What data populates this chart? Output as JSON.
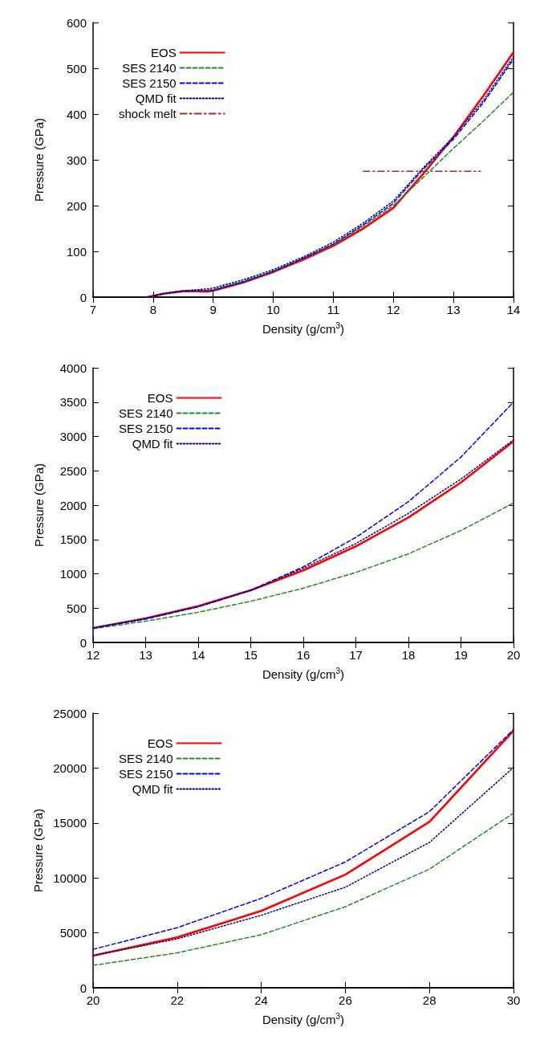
{
  "chart_data": [
    {
      "type": "line",
      "xlabel": "Density (g/cm$^{3}$)",
      "ylabel": "Pressure (GPa)",
      "xlim": [
        7,
        14
      ],
      "xticks": [
        7,
        8,
        9,
        10,
        11,
        12,
        13,
        14
      ],
      "ylim": [
        0,
        600
      ],
      "yticks": [
        0,
        100,
        200,
        300,
        400,
        500,
        600
      ],
      "grid": false,
      "legend": "top left",
      "marker": "none",
      "series": [
        {
          "name": "EOS",
          "color": "#ff0000",
          "line_style": "solid",
          "x": [
            7.9,
            8.2,
            8.5,
            8.7,
            8.9,
            9.0,
            9.5,
            10,
            10.5,
            11,
            11.5,
            12,
            12.5,
            13,
            13.5,
            14
          ],
          "values": [
            0,
            8,
            13,
            13,
            12,
            14,
            32,
            55,
            82,
            112,
            150,
            195,
            270,
            350,
            440,
            535
          ]
        },
        {
          "name": "SES 2140",
          "color": "#228b22",
          "line_style": "dashed",
          "x": [
            8.7,
            8.9,
            9.0,
            9.5,
            10,
            10.5,
            11,
            11.5,
            12,
            12.5,
            13,
            13.5,
            14
          ],
          "values": [
            14,
            15,
            17,
            35,
            57,
            85,
            115,
            155,
            200,
            262,
            325,
            385,
            448
          ]
        },
        {
          "name": "SES 2150",
          "color": "#0000ff",
          "line_style": "dashed",
          "x": [
            7.9,
            8.2,
            8.5,
            8.7,
            8.9,
            9.0,
            9.5,
            10,
            10.5,
            11,
            11.5,
            12,
            12.5,
            13,
            13.5,
            14
          ],
          "values": [
            0,
            8,
            13,
            14,
            14,
            15,
            33,
            56,
            85,
            116,
            158,
            205,
            280,
            345,
            425,
            520
          ]
        },
        {
          "name": "QMD fit",
          "color": "#000080",
          "line_style": "dotted",
          "x": [
            7.9,
            8.2,
            8.5,
            8.7,
            8.9,
            9.0,
            9.5,
            10,
            10.5,
            11,
            11.5,
            12,
            12.5,
            13,
            13.5,
            14
          ],
          "values": [
            0,
            9,
            14,
            16,
            18,
            20,
            38,
            60,
            88,
            120,
            162,
            210,
            283,
            350,
            430,
            525
          ]
        },
        {
          "name": "shock melt",
          "color": "#a52a2a",
          "line_style": "dashdot",
          "x": [
            11.5,
            13.45
          ],
          "values": [
            275,
            275
          ]
        }
      ]
    },
    {
      "type": "line",
      "xlabel": "Density (g/cm$^{3}$)",
      "ylabel": "Pressure (GPa)",
      "xlim": [
        12,
        20
      ],
      "xticks": [
        12,
        13,
        14,
        15,
        16,
        17,
        18,
        19,
        20
      ],
      "ylim": [
        0,
        4000
      ],
      "yticks": [
        0,
        500,
        1000,
        1500,
        2000,
        2500,
        3000,
        3500,
        4000
      ],
      "grid": false,
      "legend": "top left",
      "marker": "none",
      "series": [
        {
          "name": "EOS",
          "color": "#ff0000",
          "line_style": "solid",
          "x": [
            12,
            13,
            14,
            15,
            16,
            17,
            18,
            19,
            20
          ],
          "values": [
            210,
            350,
            530,
            760,
            1050,
            1400,
            1820,
            2330,
            2930
          ]
        },
        {
          "name": "SES 2140",
          "color": "#228b22",
          "line_style": "dashed",
          "x": [
            12,
            13,
            14,
            15,
            16,
            17,
            18,
            19,
            20
          ],
          "values": [
            200,
            310,
            440,
            600,
            790,
            1020,
            1290,
            1630,
            2030
          ]
        },
        {
          "name": "SES 2150",
          "color": "#0000ff",
          "line_style": "dashed",
          "x": [
            12,
            13,
            14,
            15,
            16,
            17,
            18,
            19,
            20
          ],
          "values": [
            210,
            340,
            520,
            760,
            1100,
            1530,
            2050,
            2700,
            3500
          ]
        },
        {
          "name": "QMD fit",
          "color": "#000080",
          "line_style": "dotted",
          "x": [
            12,
            13,
            14,
            15,
            16,
            17,
            18,
            19,
            20
          ],
          "values": [
            210,
            350,
            520,
            760,
            1080,
            1440,
            1880,
            2380,
            2950
          ]
        }
      ]
    },
    {
      "type": "line",
      "xlabel": "Density (g/cm$^{3}$)",
      "ylabel": "Pressure (GPa)",
      "xlim": [
        20,
        30
      ],
      "xticks": [
        20,
        22,
        24,
        26,
        28,
        30
      ],
      "ylim": [
        0,
        25000
      ],
      "yticks": [
        0,
        5000,
        10000,
        15000,
        20000,
        25000
      ],
      "grid": false,
      "legend": "top left",
      "marker": "none",
      "series": [
        {
          "name": "EOS",
          "color": "#ff0000",
          "line_style": "solid",
          "x": [
            20,
            22,
            24,
            26,
            28,
            30
          ],
          "values": [
            2930,
            4580,
            7000,
            10300,
            15100,
            23400
          ]
        },
        {
          "name": "SES 2140",
          "color": "#228b22",
          "line_style": "dashed",
          "x": [
            20,
            22,
            24,
            26,
            28,
            30
          ],
          "values": [
            2040,
            3180,
            4830,
            7380,
            10800,
            15900
          ]
        },
        {
          "name": "SES 2150",
          "color": "#0000ff",
          "line_style": "dashed",
          "x": [
            20,
            22,
            24,
            26,
            28,
            30
          ],
          "values": [
            3500,
            5470,
            8140,
            11450,
            16030,
            23500
          ]
        },
        {
          "name": "QMD fit",
          "color": "#000080",
          "line_style": "dotted",
          "x": [
            20,
            22,
            24,
            26,
            28,
            30
          ],
          "values": [
            2930,
            4450,
            6600,
            9150,
            13230,
            20050
          ]
        }
      ]
    }
  ]
}
